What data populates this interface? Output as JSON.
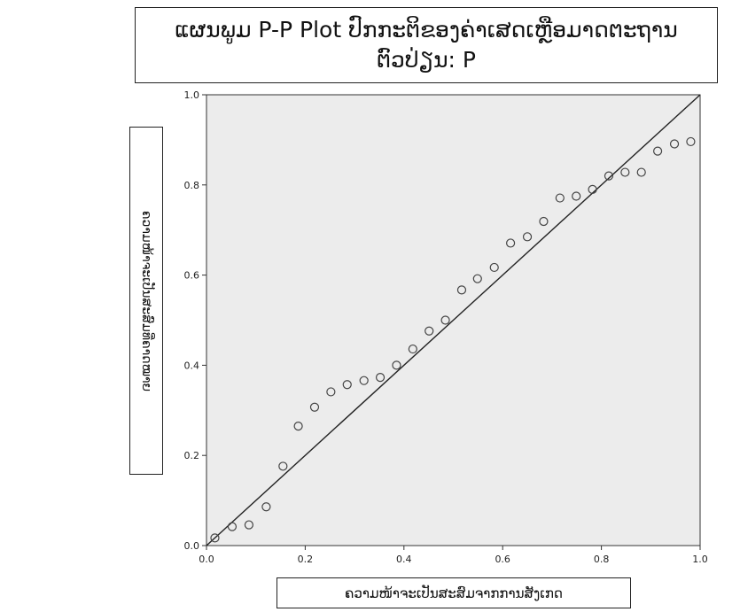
{
  "chart_data": {
    "type": "scatter",
    "title_lines": [
      "ແຜນພູມ P-P Plot ປົກກະຕິຂອງຄ່າເສດເຫຼືອມາດຕະຖານ",
      "ຕົວປ່ຽນ: P"
    ],
    "xlabel": "ຄວາມໜ້າຈະເປັນສະສົມຈາກການສັງເກດ",
    "ylabel": "ຄວາມໜ້າຈະເປັນສະສົມທີ່ຄາດໝາຍ",
    "xlim": [
      0.0,
      1.0
    ],
    "ylim": [
      0.0,
      1.0
    ],
    "xticks": [
      "0.0",
      "0.2",
      "0.4",
      "0.6",
      "0.8",
      "1.0"
    ],
    "yticks": [
      "0.0",
      "0.2",
      "0.4",
      "0.6",
      "0.8",
      "1.0"
    ],
    "reference_line": [
      [
        0.0,
        0.0
      ],
      [
        1.0,
        1.0
      ]
    ],
    "grid": false,
    "plot_background": "#ececec",
    "marker_color": "#444444",
    "points": [
      [
        0.017,
        0.017
      ],
      [
        0.052,
        0.042
      ],
      [
        0.086,
        0.046
      ],
      [
        0.121,
        0.086
      ],
      [
        0.155,
        0.176
      ],
      [
        0.186,
        0.265
      ],
      [
        0.219,
        0.307
      ],
      [
        0.252,
        0.341
      ],
      [
        0.285,
        0.357
      ],
      [
        0.319,
        0.366
      ],
      [
        0.352,
        0.373
      ],
      [
        0.385,
        0.4
      ],
      [
        0.418,
        0.436
      ],
      [
        0.451,
        0.476
      ],
      [
        0.484,
        0.5
      ],
      [
        0.517,
        0.567
      ],
      [
        0.549,
        0.592
      ],
      [
        0.583,
        0.617
      ],
      [
        0.616,
        0.671
      ],
      [
        0.65,
        0.685
      ],
      [
        0.683,
        0.719
      ],
      [
        0.716,
        0.771
      ],
      [
        0.749,
        0.775
      ],
      [
        0.782,
        0.79
      ],
      [
        0.815,
        0.82
      ],
      [
        0.848,
        0.828
      ],
      [
        0.881,
        0.828
      ],
      [
        0.914,
        0.875
      ],
      [
        0.948,
        0.891
      ],
      [
        0.981,
        0.896
      ]
    ]
  }
}
